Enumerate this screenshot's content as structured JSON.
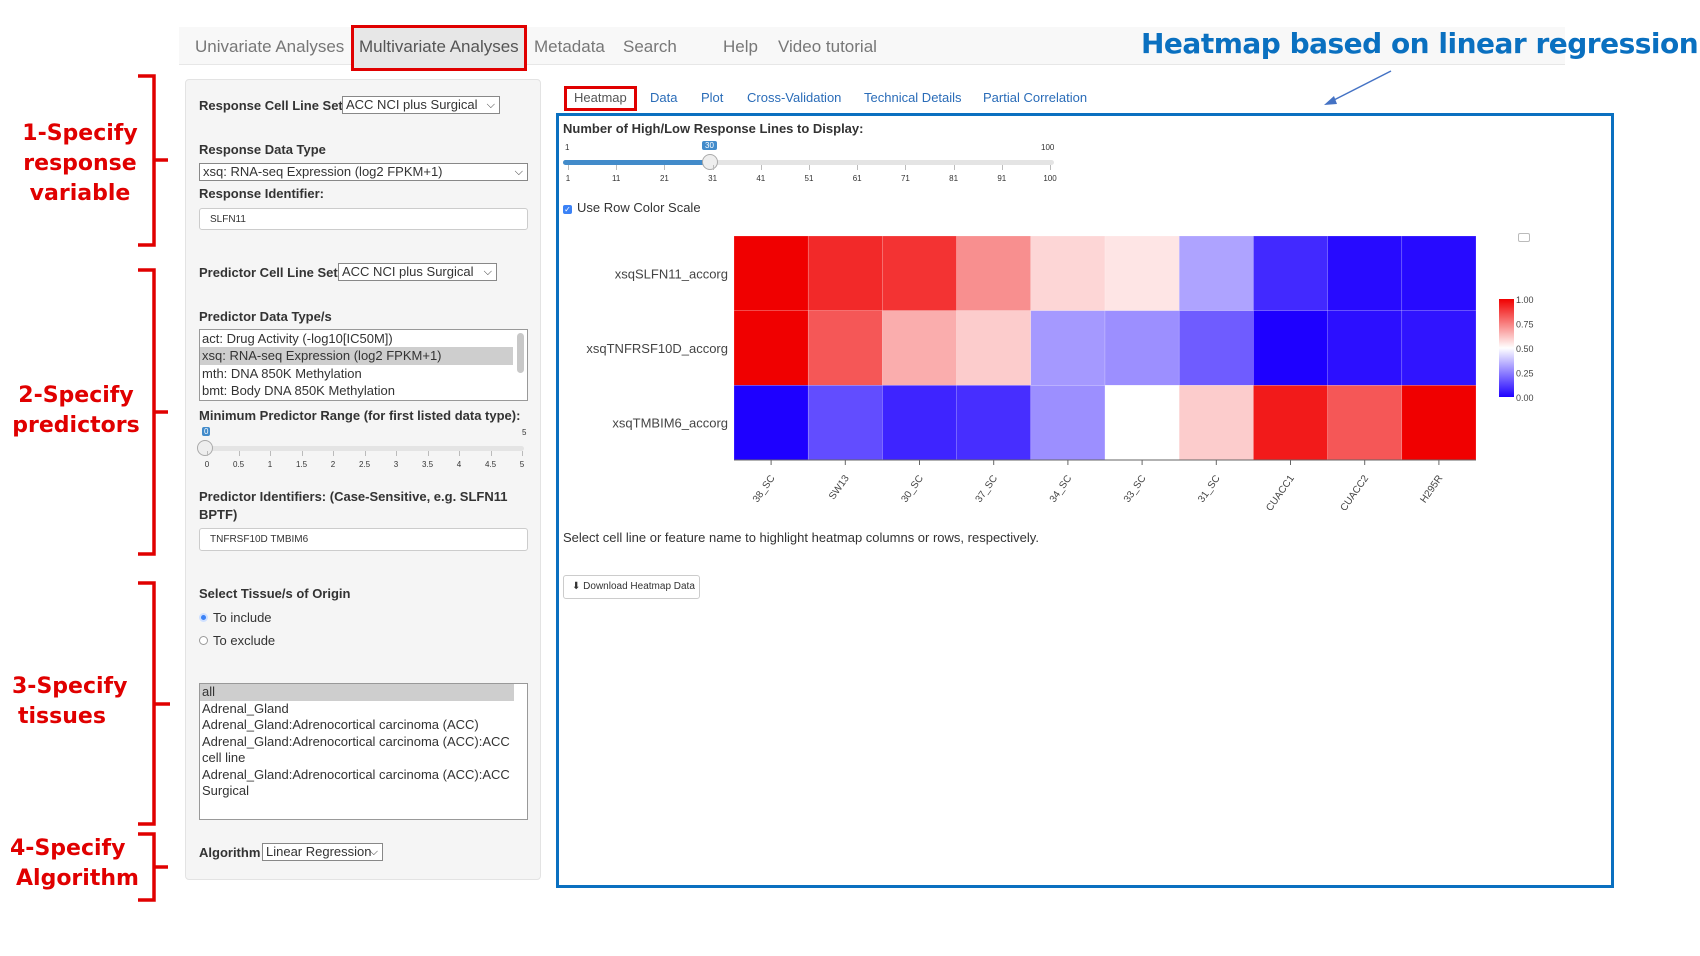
{
  "nav": {
    "items": [
      "Univariate Analyses",
      "Multivariate Analyses",
      "Metadata",
      "Search",
      "Help",
      "Video tutorial"
    ],
    "active": "Multivariate Analyses"
  },
  "annotation_title": "Heatmap based on linear regression",
  "annotations": [
    [
      "1-Specify",
      "response",
      "variable"
    ],
    [
      "2-Specify",
      "predictors"
    ],
    [
      "3-Specify",
      "tissues"
    ],
    [
      "4-Specify",
      "Algorithm"
    ]
  ],
  "left": {
    "response_cell_line_set_label": "Response Cell Line Set",
    "response_cell_line_set": "ACC NCI plus Surgical",
    "response_data_type_label": "Response Data Type",
    "response_data_type": "xsq: RNA-seq Expression (log2 FPKM+1)",
    "response_identifier_label": "Response Identifier:",
    "response_identifier": "SLFN11",
    "predictor_cell_line_set_label": "Predictor Cell Line Set",
    "predictor_cell_line_set": "ACC NCI plus Surgical",
    "predictor_data_types_label": "Predictor Data Type/s",
    "predictor_data_types": [
      "act: Drug Activity (-log10[IC50M])",
      "xsq: RNA-seq Expression (log2 FPKM+1)",
      "mth: DNA 850K Methylation",
      "bmt: Body DNA 850K Methylation"
    ],
    "predictor_data_types_selected": 1,
    "min_range_label": "Minimum Predictor Range (for first listed data type):",
    "min_range": {
      "min": "0",
      "max": "5",
      "value": "0",
      "ticks": [
        "0",
        "0.5",
        "1",
        "1.5",
        "2",
        "2.5",
        "3",
        "3.5",
        "4",
        "4.5",
        "5"
      ]
    },
    "predictor_identifiers_label": "Predictor Identifiers: (Case-Sensitive, e.g. SLFN11 BPTF)",
    "predictor_identifiers": "TNFRSF10D TMBIM6",
    "tissue_label": "Select Tissue/s of Origin",
    "tissue_radio": [
      "To include",
      "To exclude"
    ],
    "tissue_radio_selected": 0,
    "tissues": [
      "all",
      "Adrenal_Gland",
      "Adrenal_Gland:Adrenocortical carcinoma (ACC)",
      "Adrenal_Gland:Adrenocortical carcinoma (ACC):ACC cell line",
      "Adrenal_Gland:Adrenocortical carcinoma (ACC):ACC Surgical"
    ],
    "tissues_selected": 0,
    "algorithm_label": "Algorithm",
    "algorithm": "Linear Regression"
  },
  "tabs": [
    "Heatmap",
    "Data",
    "Plot",
    "Cross-Validation",
    "Technical Details",
    "Partial Correlation"
  ],
  "active_tab": "Heatmap",
  "slider": {
    "label": "Number of High/Low Response Lines to Display:",
    "min": "1",
    "max": "100",
    "value": "30",
    "ticks": [
      "1",
      "11",
      "21",
      "31",
      "41",
      "51",
      "61",
      "71",
      "81",
      "91",
      "100"
    ]
  },
  "row_color_scale_label": "Use Row Color Scale",
  "row_color_scale_checked": true,
  "hint": "Select cell line or feature name to highlight heatmap columns or rows, respectively.",
  "download_label": "Download Heatmap Data",
  "colors": {
    "accent": "#0a70c0",
    "annotation": "#e00000",
    "low": "#1e00ff",
    "mid": "#ffffff",
    "high": "#f00000"
  },
  "chart_data": {
    "type": "heatmap",
    "rows": [
      "xsqSLFN11_accorg",
      "xsqTNFRSF10D_accorg",
      "xsqTMBIM6_accorg"
    ],
    "columns": [
      "38_SC",
      "SW13",
      "30_SC",
      "37_SC",
      "34_SC",
      "33_SC",
      "31_SC",
      "CUACC1",
      "CUACC2",
      "H295R"
    ],
    "values": [
      [
        1.0,
        0.92,
        0.9,
        0.72,
        0.58,
        0.55,
        0.32,
        0.08,
        0.02,
        0.02
      ],
      [
        1.0,
        0.83,
        0.66,
        0.6,
        0.3,
        0.28,
        0.18,
        0.0,
        0.03,
        0.04
      ],
      [
        0.0,
        0.15,
        0.07,
        0.09,
        0.28,
        0.5,
        0.6,
        0.95,
        0.83,
        1.0
      ]
    ],
    "colorbar_ticks": [
      "1.00",
      "0.75",
      "0.50",
      "0.25",
      "0.00"
    ],
    "zlim": [
      0,
      1
    ]
  }
}
